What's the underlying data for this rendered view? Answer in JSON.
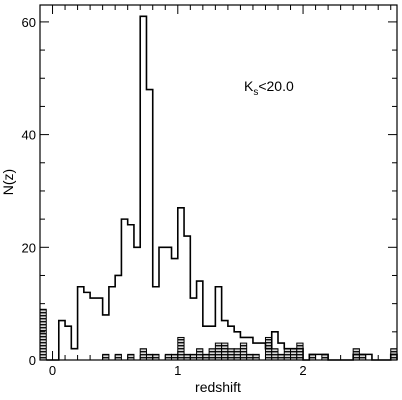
{
  "chart_data": {
    "type": "histogram",
    "xlabel": "redshift",
    "ylabel": "N(z)",
    "xlim": [
      -0.1,
      2.75
    ],
    "ylim": [
      0,
      63
    ],
    "xticks": [
      0,
      1,
      2
    ],
    "yticks": [
      0,
      20,
      40,
      60
    ],
    "grid": false,
    "annotation": {
      "main": "K",
      "subscript": "s",
      "rest": "<20.0"
    },
    "bin_width": 0.05,
    "series": [
      {
        "style": "open-step",
        "bins": [
          [
            -0.05,
            0
          ],
          [
            0.0,
            0
          ],
          [
            0.05,
            7
          ],
          [
            0.1,
            6
          ],
          [
            0.15,
            2
          ],
          [
            0.2,
            13
          ],
          [
            0.25,
            12
          ],
          [
            0.3,
            11
          ],
          [
            0.35,
            11
          ],
          [
            0.4,
            8
          ],
          [
            0.45,
            13
          ],
          [
            0.5,
            15
          ],
          [
            0.55,
            25
          ],
          [
            0.6,
            24
          ],
          [
            0.65,
            20
          ],
          [
            0.7,
            61
          ],
          [
            0.75,
            48
          ],
          [
            0.8,
            13
          ],
          [
            0.85,
            20
          ],
          [
            0.9,
            20
          ],
          [
            0.95,
            18
          ],
          [
            1.0,
            27
          ],
          [
            1.05,
            22
          ],
          [
            1.1,
            11
          ],
          [
            1.15,
            14
          ],
          [
            1.2,
            6
          ],
          [
            1.25,
            6
          ],
          [
            1.3,
            13
          ],
          [
            1.35,
            7
          ],
          [
            1.4,
            6
          ],
          [
            1.45,
            5
          ],
          [
            1.5,
            4
          ],
          [
            1.55,
            4
          ],
          [
            1.6,
            3
          ],
          [
            1.65,
            3
          ],
          [
            1.7,
            2
          ],
          [
            1.75,
            5
          ],
          [
            1.8,
            3
          ],
          [
            1.85,
            2
          ],
          [
            1.9,
            2
          ],
          [
            1.95,
            2
          ],
          [
            2.0,
            0
          ],
          [
            2.05,
            1
          ],
          [
            2.1,
            1
          ],
          [
            2.15,
            1
          ],
          [
            2.2,
            0
          ],
          [
            2.25,
            0
          ],
          [
            2.3,
            0
          ],
          [
            2.35,
            0
          ],
          [
            2.4,
            1
          ],
          [
            2.45,
            1
          ],
          [
            2.5,
            1
          ],
          [
            2.55,
            0
          ],
          [
            2.6,
            0
          ],
          [
            2.65,
            0
          ],
          [
            2.7,
            1
          ]
        ]
      },
      {
        "style": "hatched-filled",
        "bins": [
          [
            -0.1,
            9
          ],
          [
            0.0,
            0
          ],
          [
            0.4,
            1
          ],
          [
            0.5,
            1
          ],
          [
            0.6,
            1
          ],
          [
            0.7,
            2
          ],
          [
            0.75,
            1
          ],
          [
            0.8,
            1
          ],
          [
            0.9,
            1
          ],
          [
            0.95,
            1
          ],
          [
            1.0,
            4
          ],
          [
            1.05,
            1
          ],
          [
            1.1,
            1
          ],
          [
            1.15,
            2
          ],
          [
            1.2,
            1
          ],
          [
            1.25,
            2
          ],
          [
            1.3,
            3
          ],
          [
            1.35,
            3
          ],
          [
            1.4,
            2
          ],
          [
            1.45,
            2
          ],
          [
            1.5,
            3
          ],
          [
            1.55,
            1
          ],
          [
            1.6,
            1
          ],
          [
            1.7,
            4
          ],
          [
            1.75,
            2
          ],
          [
            1.8,
            1
          ],
          [
            1.85,
            2
          ],
          [
            1.9,
            2
          ],
          [
            1.95,
            3
          ],
          [
            2.05,
            1
          ],
          [
            2.15,
            1
          ],
          [
            2.4,
            2
          ],
          [
            2.45,
            1
          ],
          [
            2.7,
            2
          ]
        ]
      }
    ]
  }
}
